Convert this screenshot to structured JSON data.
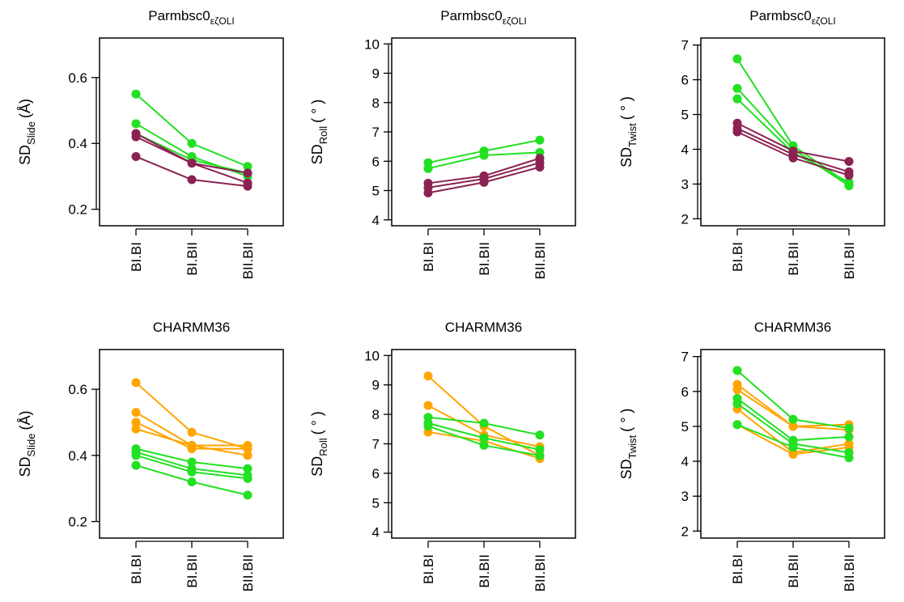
{
  "colors": {
    "green": "#22e022",
    "purple": "#8b2252",
    "orange": "#ffa500"
  },
  "chart_data": [
    {
      "type": "line",
      "title": "Parmbsc0",
      "title_subscript": "εζOLI",
      "ylabel": "SD",
      "ylabel_subscript": "Slide",
      "ylabel_unit": "(Å)",
      "categories": [
        "BI.BI",
        "BI.BII",
        "BII.BII"
      ],
      "ylim": [
        0.15,
        0.72
      ],
      "yticks": [
        0.2,
        0.4,
        0.6
      ],
      "series": [
        {
          "color": "green",
          "values": [
            0.55,
            0.4,
            0.33
          ]
        },
        {
          "color": "green",
          "values": [
            0.46,
            0.36,
            0.3
          ]
        },
        {
          "color": "green",
          "values": [
            0.43,
            0.35,
            0.31
          ]
        },
        {
          "color": "purple",
          "values": [
            0.43,
            0.34,
            0.31
          ]
        },
        {
          "color": "purple",
          "values": [
            0.42,
            0.34,
            0.28
          ]
        },
        {
          "color": "purple",
          "values": [
            0.36,
            0.29,
            0.27
          ]
        }
      ]
    },
    {
      "type": "line",
      "title": "Parmbsc0",
      "title_subscript": "εζOLI",
      "ylabel": "SD",
      "ylabel_subscript": "Roll",
      "ylabel_unit": "( ° )",
      "categories": [
        "BI.BI",
        "BI.BII",
        "BII.BII"
      ],
      "ylim": [
        3.8,
        10.2
      ],
      "yticks": [
        4,
        5,
        6,
        7,
        8,
        9,
        10
      ],
      "series": [
        {
          "color": "green",
          "values": [
            5.95,
            6.35,
            6.72
          ]
        },
        {
          "color": "green",
          "values": [
            5.75,
            6.2,
            6.3
          ]
        },
        {
          "color": "purple",
          "values": [
            5.25,
            5.5,
            6.1
          ]
        },
        {
          "color": "purple",
          "values": [
            5.1,
            5.4,
            5.95
          ]
        },
        {
          "color": "purple",
          "values": [
            4.92,
            5.28,
            5.8
          ]
        }
      ]
    },
    {
      "type": "line",
      "title": "Parmbsc0",
      "title_subscript": "εζOLI",
      "ylabel": "SD",
      "ylabel_subscript": "Twist",
      "ylabel_unit": "( ° )",
      "categories": [
        "BI.BI",
        "BI.BII",
        "BII.BII"
      ],
      "ylim": [
        1.8,
        7.2
      ],
      "yticks": [
        2,
        3,
        4,
        5,
        6,
        7
      ],
      "series": [
        {
          "color": "green",
          "values": [
            6.6,
            4.1,
            3.0
          ]
        },
        {
          "color": "green",
          "values": [
            5.75,
            4.0,
            2.95
          ]
        },
        {
          "color": "green",
          "values": [
            5.45,
            3.9,
            3.05
          ]
        },
        {
          "color": "purple",
          "values": [
            4.75,
            3.95,
            3.65
          ]
        },
        {
          "color": "purple",
          "values": [
            4.6,
            3.85,
            3.35
          ]
        },
        {
          "color": "purple",
          "values": [
            4.5,
            3.75,
            3.25
          ]
        }
      ]
    },
    {
      "type": "line",
      "title": "CHARMM36",
      "title_subscript": "",
      "ylabel": "SD",
      "ylabel_subscript": "Slide",
      "ylabel_unit": "(Å)",
      "categories": [
        "BI.BI",
        "BI.BII",
        "BII.BII"
      ],
      "ylim": [
        0.15,
        0.72
      ],
      "yticks": [
        0.2,
        0.4,
        0.6
      ],
      "series": [
        {
          "color": "orange",
          "values": [
            0.62,
            0.47,
            0.42
          ]
        },
        {
          "color": "orange",
          "values": [
            0.53,
            0.43,
            0.43
          ]
        },
        {
          "color": "orange",
          "values": [
            0.5,
            0.42,
            0.42
          ]
        },
        {
          "color": "orange",
          "values": [
            0.48,
            0.43,
            0.4
          ]
        },
        {
          "color": "green",
          "values": [
            0.42,
            0.38,
            0.36
          ]
        },
        {
          "color": "green",
          "values": [
            0.41,
            0.36,
            0.34
          ]
        },
        {
          "color": "green",
          "values": [
            0.4,
            0.35,
            0.33
          ]
        },
        {
          "color": "green",
          "values": [
            0.37,
            0.32,
            0.28
          ]
        }
      ]
    },
    {
      "type": "line",
      "title": "CHARMM36",
      "title_subscript": "",
      "ylabel": "SD",
      "ylabel_subscript": "Roll",
      "ylabel_unit": "( ° )",
      "categories": [
        "BI.BI",
        "BI.BII",
        "BII.BII"
      ],
      "ylim": [
        3.8,
        10.2
      ],
      "yticks": [
        4,
        5,
        6,
        7,
        8,
        9,
        10
      ],
      "series": [
        {
          "color": "orange",
          "values": [
            9.3,
            7.6,
            6.6
          ]
        },
        {
          "color": "orange",
          "values": [
            8.3,
            7.3,
            6.9
          ]
        },
        {
          "color": "orange",
          "values": [
            7.4,
            7.1,
            6.5
          ]
        },
        {
          "color": "green",
          "values": [
            7.9,
            7.7,
            7.3
          ]
        },
        {
          "color": "green",
          "values": [
            7.7,
            7.2,
            6.8
          ]
        },
        {
          "color": "green",
          "values": [
            7.6,
            6.95,
            6.6
          ]
        }
      ]
    },
    {
      "type": "line",
      "title": "CHARMM36",
      "title_subscript": "",
      "ylabel": "SD",
      "ylabel_subscript": "Twist",
      "ylabel_unit": "( ° )",
      "categories": [
        "BI.BI",
        "BI.BII",
        "BII.BII"
      ],
      "ylim": [
        1.8,
        7.2
      ],
      "yticks": [
        2,
        3,
        4,
        5,
        6,
        7
      ],
      "series": [
        {
          "color": "orange",
          "values": [
            6.2,
            5.0,
            5.05
          ]
        },
        {
          "color": "orange",
          "values": [
            6.05,
            5.0,
            4.9
          ]
        },
        {
          "color": "orange",
          "values": [
            5.5,
            4.25,
            4.5
          ]
        },
        {
          "color": "orange",
          "values": [
            5.05,
            4.2,
            4.4
          ]
        },
        {
          "color": "green",
          "values": [
            6.6,
            5.2,
            4.95
          ]
        },
        {
          "color": "green",
          "values": [
            5.8,
            4.6,
            4.7
          ]
        },
        {
          "color": "green",
          "values": [
            5.65,
            4.5,
            4.25
          ]
        },
        {
          "color": "green",
          "values": [
            5.05,
            4.4,
            4.1
          ]
        }
      ]
    }
  ]
}
